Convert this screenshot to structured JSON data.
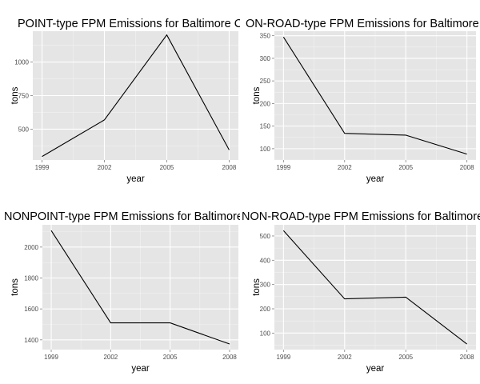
{
  "chart_data": [
    {
      "type": "line",
      "title": "POINT-type FPM Emissions for Baltimore C",
      "xlabel": "year",
      "ylabel": "tons",
      "x": [
        1999,
        2002,
        2005,
        2008
      ],
      "values": [
        296,
        569,
        1202,
        345
      ],
      "xlim": [
        1999,
        2008
      ],
      "ylim": [
        270,
        1230
      ],
      "xticks": [
        1999,
        2002,
        2005,
        2008
      ],
      "yticks": [
        500,
        750,
        1000
      ],
      "grid": true,
      "line_color": "#000000"
    },
    {
      "type": "line",
      "title": "ON-ROAD-type FPM Emissions for Baltimore",
      "xlabel": "year",
      "ylabel": "tons",
      "x": [
        1999,
        2002,
        2005,
        2008
      ],
      "values": [
        347,
        134,
        130,
        88
      ],
      "xlim": [
        1999,
        2008
      ],
      "ylim": [
        75,
        360
      ],
      "xticks": [
        1999,
        2002,
        2005,
        2008
      ],
      "yticks": [
        100,
        150,
        200,
        250,
        300,
        350
      ],
      "grid": true,
      "line_color": "#000000"
    },
    {
      "type": "line",
      "title": "NONPOINT-type FPM Emissions for Baltimore",
      "xlabel": "year",
      "ylabel": "tons",
      "x": [
        1999,
        2002,
        2005,
        2008
      ],
      "values": [
        2107,
        1510,
        1510,
        1373
      ],
      "xlim": [
        1999,
        2008
      ],
      "ylim": [
        1337,
        2144
      ],
      "xticks": [
        1999,
        2002,
        2005,
        2008
      ],
      "yticks": [
        1400,
        1600,
        1800,
        2000
      ],
      "grid": true,
      "line_color": "#000000"
    },
    {
      "type": "line",
      "title": "NON-ROAD-type FPM Emissions for Baltimore",
      "xlabel": "year",
      "ylabel": "tons",
      "x": [
        1999,
        2002,
        2005,
        2008
      ],
      "values": [
        522,
        241,
        248,
        55
      ],
      "xlim": [
        1999,
        2008
      ],
      "ylim": [
        32,
        546
      ],
      "xticks": [
        1999,
        2002,
        2005,
        2008
      ],
      "yticks": [
        100,
        200,
        300,
        400,
        500
      ],
      "grid": true,
      "line_color": "#000000"
    }
  ]
}
